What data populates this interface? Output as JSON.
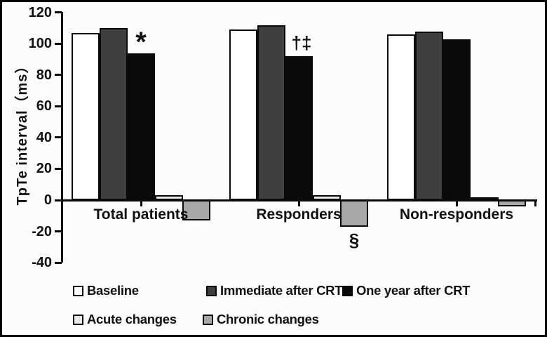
{
  "figure": {
    "background": "#fcfcfc",
    "frame_color": "#000000"
  },
  "chart_data": {
    "type": "bar",
    "title": "",
    "xlabel": "",
    "ylabel": "TpTe interval（ms）",
    "ylim": [
      -40,
      120
    ],
    "yticks": [
      120,
      100,
      80,
      60,
      40,
      20,
      0,
      -20,
      -40
    ],
    "grid": false,
    "legend_position": "bottom",
    "categories": [
      "Total patients",
      "Responders",
      "Non-responders"
    ],
    "series": [
      {
        "name": "Baseline",
        "fill": "#ffffff",
        "border": "#0a0a0a",
        "values": [
          107,
          109,
          106
        ]
      },
      {
        "name": "Immediate after CRT",
        "fill": "#3f3f3f",
        "border": "#0a0a0a",
        "values": [
          110,
          112,
          108
        ]
      },
      {
        "name": "One year after CRT",
        "fill": "#0a0a0a",
        "border": "#0a0a0a",
        "values": [
          94,
          92,
          103
        ]
      },
      {
        "name": "Acute changes",
        "fill": "#e9e9e9",
        "border": "#0a0a0a",
        "values": [
          3,
          3,
          2
        ]
      },
      {
        "name": "Chronic changes",
        "fill": "#a8a8a8",
        "border": "#0a0a0a",
        "values": [
          -13,
          -17,
          -4
        ]
      }
    ],
    "annotations": [
      {
        "text": "*",
        "category_index": 0,
        "series_index": 2,
        "placement": "above"
      },
      {
        "text": "†‡",
        "category_index": 1,
        "series_index": 2,
        "placement": "above"
      },
      {
        "text": "§",
        "category_index": 1,
        "series_index": 4,
        "placement": "below"
      }
    ]
  }
}
